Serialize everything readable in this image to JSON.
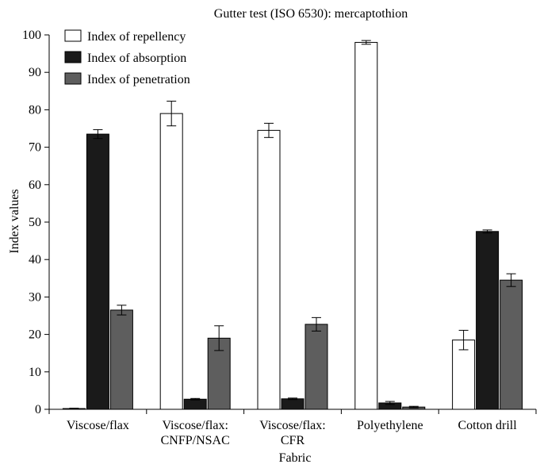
{
  "chart_data": {
    "type": "bar",
    "title": "Gutter test (ISO 6530): mercaptothion",
    "xlabel": "Fabric",
    "ylabel": "Index values",
    "ylim": [
      0,
      100
    ],
    "yticks": [
      0,
      10,
      20,
      30,
      40,
      50,
      60,
      70,
      80,
      90,
      100
    ],
    "grid": false,
    "legend_position": "top-left",
    "categories": [
      [
        "Viscose/flax"
      ],
      [
        "Viscose/flax:",
        "CNFP/NSAC"
      ],
      [
        "Viscose/flax:",
        "CFR"
      ],
      [
        "Polyethylene"
      ],
      [
        "Cotton drill"
      ]
    ],
    "series": [
      {
        "name": "Index of repellency",
        "color": "#ffffff",
        "values": [
          0.2,
          79,
          74.5,
          98,
          18.5
        ],
        "errors": [
          0.1,
          3.3,
          1.9,
          0.5,
          2.6
        ]
      },
      {
        "name": "Index of absorption",
        "color": "#1a1a1a",
        "values": [
          73.5,
          2.7,
          2.8,
          1.7,
          47.5
        ],
        "errors": [
          1.2,
          0.2,
          0.2,
          0.4,
          0.4
        ]
      },
      {
        "name": "Index of penetration",
        "color": "#5e5e5e",
        "values": [
          26.5,
          19,
          22.7,
          0.6,
          34.5
        ],
        "errors": [
          1.3,
          3.3,
          1.8,
          0.2,
          1.7
        ]
      }
    ]
  }
}
